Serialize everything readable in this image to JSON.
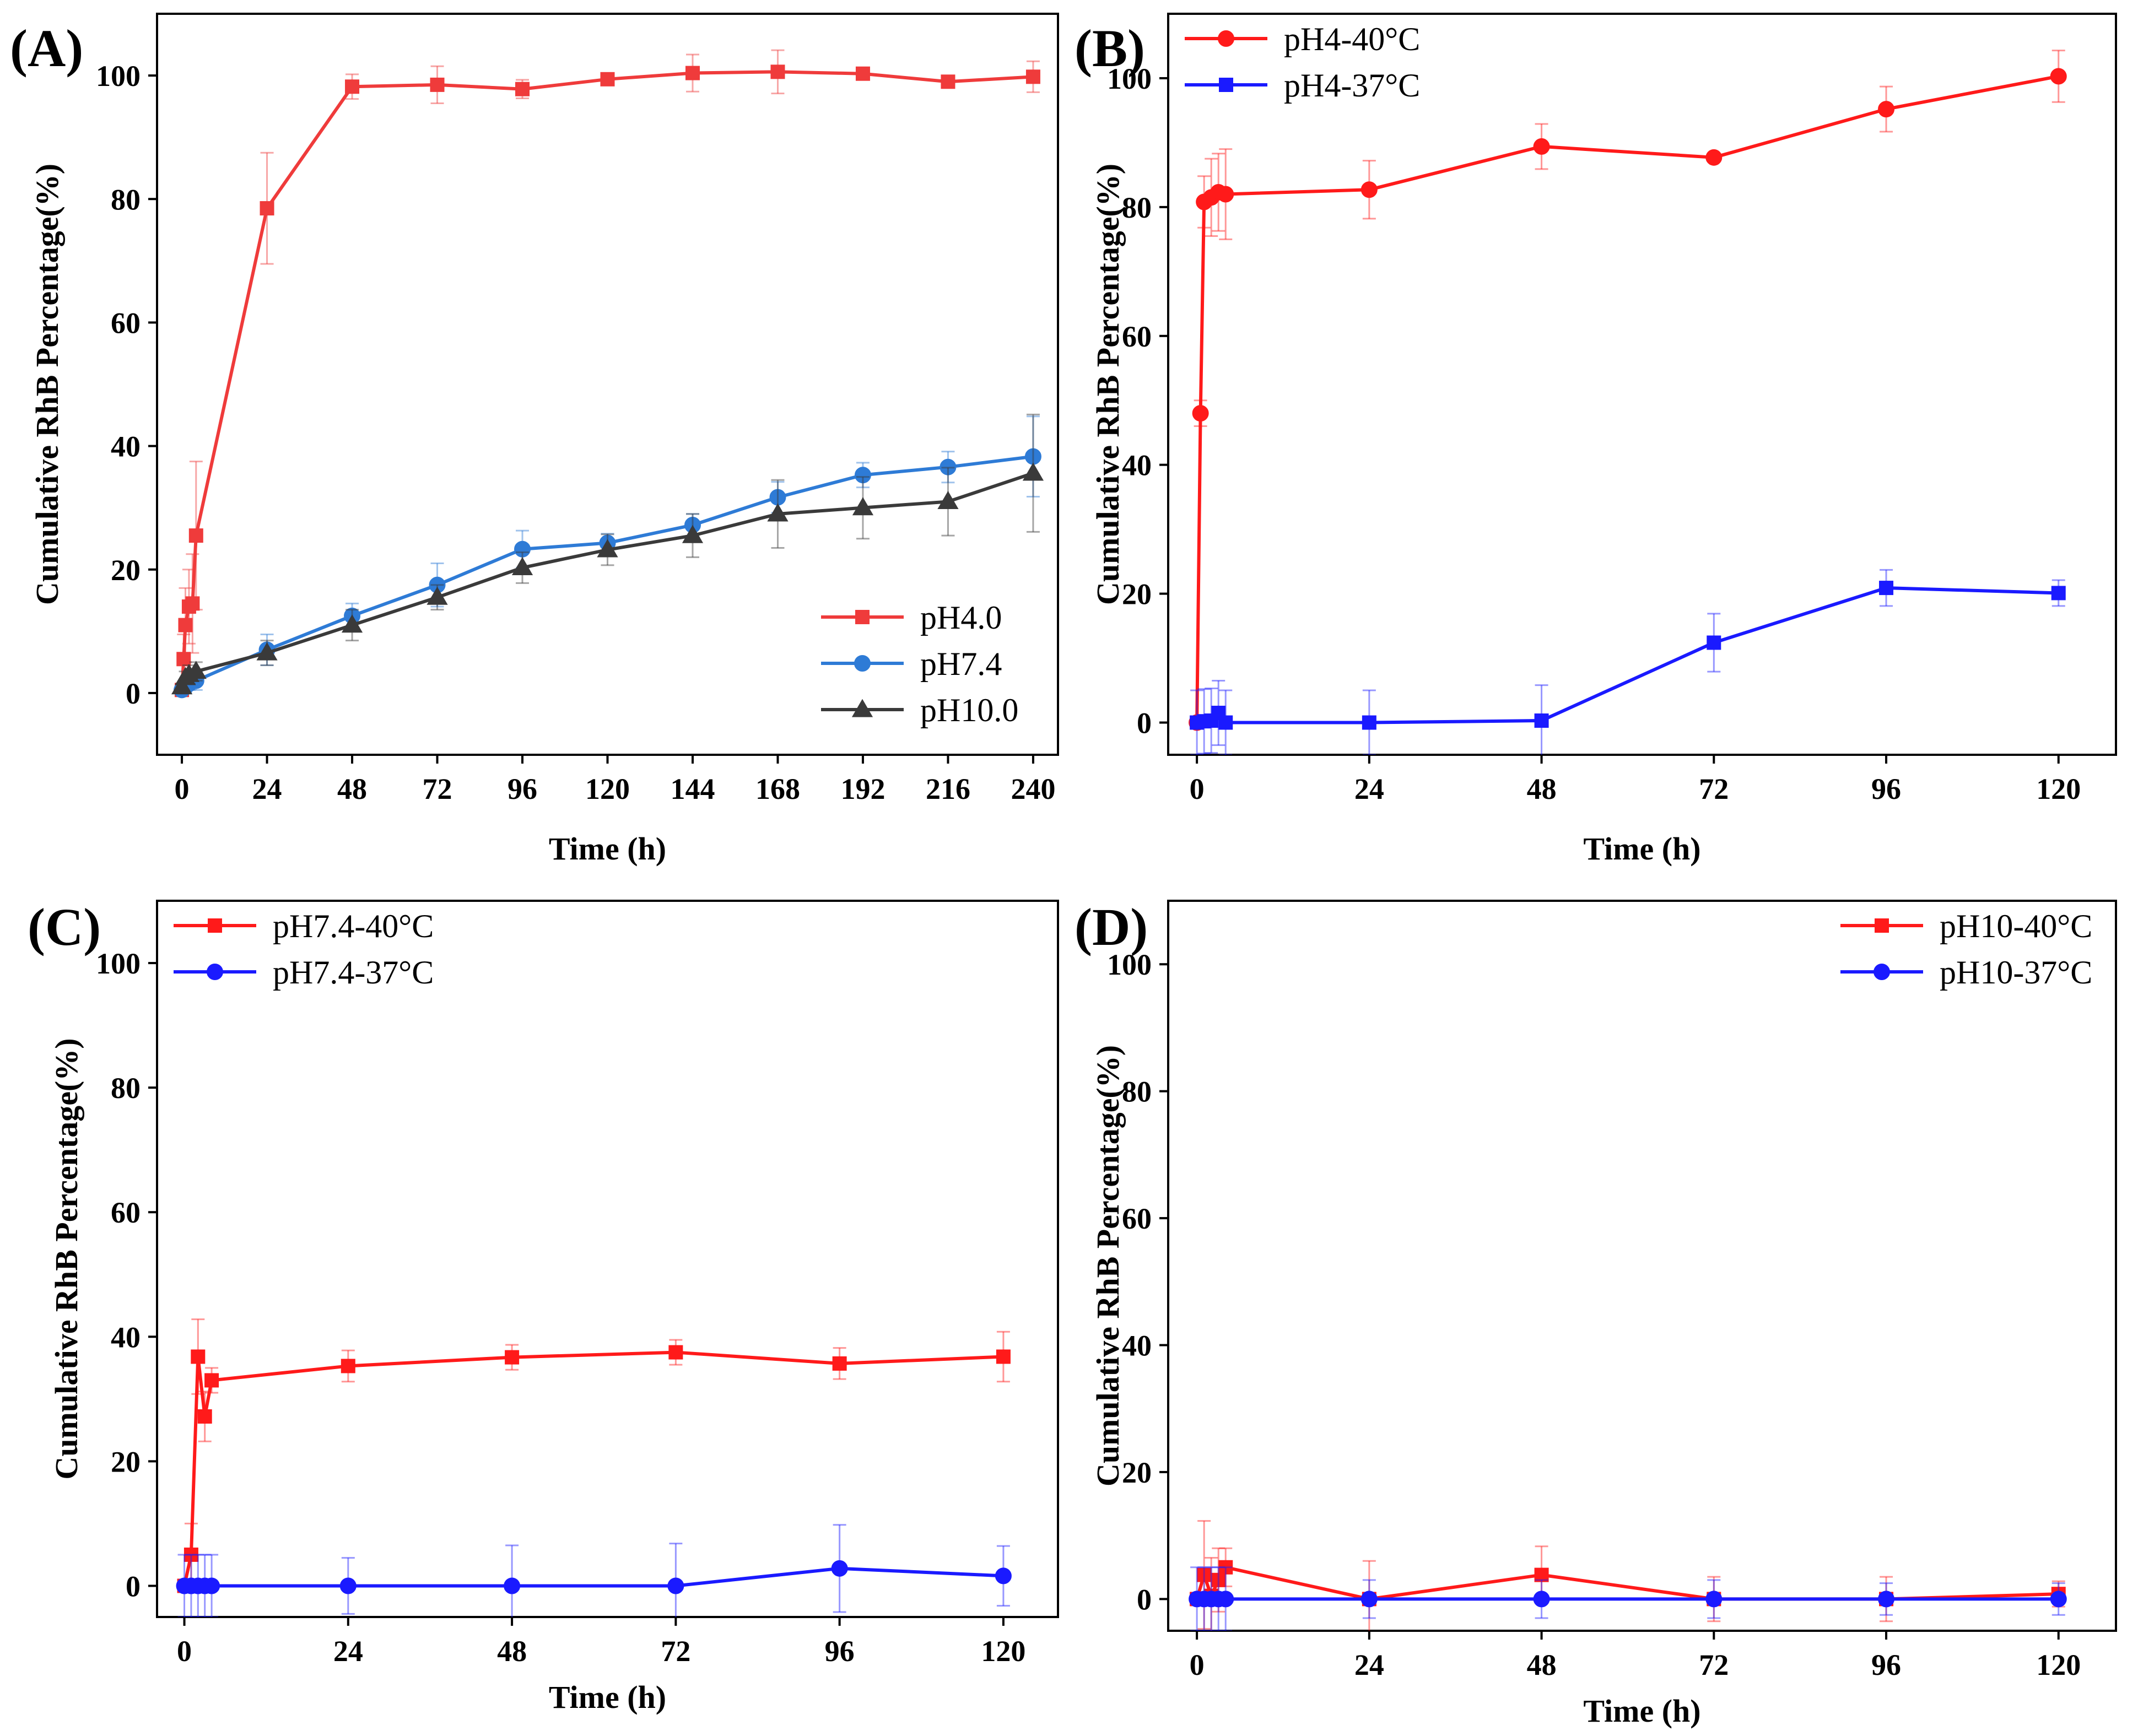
{
  "chart_data": [
    {
      "type": "line",
      "panel_label": "(A)",
      "xlabel": "Time (h)",
      "ylabel": "Cumulative RhB Percentage(%)",
      "xlim": [
        -7,
        247
      ],
      "ylim": [
        -10,
        110
      ],
      "xticks": [
        0,
        24,
        48,
        72,
        96,
        120,
        144,
        168,
        192,
        216,
        240
      ],
      "yticks": [
        0,
        20,
        40,
        60,
        80,
        100
      ],
      "xtick_labels": [
        "0",
        "24",
        "48",
        "72",
        "96",
        "120",
        "144",
        "168",
        "192",
        "216",
        "240"
      ],
      "ytick_labels": [
        "0",
        "20",
        "40",
        "60",
        "80",
        "100"
      ],
      "legend_position": "bottom-right",
      "series": [
        {
          "name": "pH4.0",
          "color": "#ef3b3b",
          "marker": "square",
          "x": [
            0,
            0.5,
            1,
            2,
            3,
            4,
            24,
            48,
            72,
            96,
            120,
            144,
            168,
            192,
            216,
            240
          ],
          "y": [
            0.5,
            5.5,
            11,
            14,
            14.5,
            25.5,
            78.5,
            98.2,
            98.5,
            97.8,
            99.4,
            100.4,
            100.6,
            100.3,
            99.0,
            99.8
          ],
          "err": [
            0.5,
            4,
            6,
            6,
            8,
            12,
            9,
            2,
            3,
            1.5,
            1,
            3,
            3.5,
            0.5,
            0.5,
            2.5
          ]
        },
        {
          "name": "pH7.4",
          "color": "#2e7bd6",
          "marker": "circle",
          "x": [
            0,
            1,
            2,
            4,
            24,
            48,
            72,
            96,
            120,
            144,
            168,
            192,
            216,
            240
          ],
          "y": [
            0.5,
            1.0,
            1.5,
            2.0,
            7.0,
            12.5,
            17.5,
            23.3,
            24.3,
            27.2,
            31.7,
            35.3,
            36.6,
            38.3
          ],
          "err": [
            0.5,
            1,
            1,
            1.5,
            2.5,
            2,
            3.5,
            3,
            1.5,
            1.8,
            2.5,
            2,
            2.5,
            6.5
          ]
        },
        {
          "name": "pH10.0",
          "color": "#3a3a3a",
          "marker": "triangle",
          "x": [
            0,
            1,
            2,
            4,
            24,
            48,
            72,
            96,
            120,
            144,
            168,
            192,
            216,
            240
          ],
          "y": [
            1.0,
            2.5,
            3.0,
            3.5,
            6.5,
            11.0,
            15.5,
            20.3,
            23.2,
            25.5,
            29.0,
            30.0,
            31.0,
            35.6
          ],
          "err": [
            0.5,
            1,
            1.5,
            1.5,
            2,
            2.5,
            2,
            2.5,
            2.5,
            3.5,
            5.5,
            5,
            5.5,
            9.5
          ]
        }
      ]
    },
    {
      "type": "line",
      "panel_label": "(B)",
      "xlabel": "Time (h)",
      "ylabel": "Cumulative RhB Percentage(%)",
      "xlim": [
        -4,
        128
      ],
      "ylim": [
        -5,
        110
      ],
      "xticks": [
        0,
        24,
        48,
        72,
        96,
        120
      ],
      "yticks": [
        0,
        20,
        40,
        60,
        80,
        100
      ],
      "xtick_labels": [
        "0",
        "24",
        "48",
        "72",
        "96",
        "120"
      ],
      "ytick_labels": [
        "0",
        "20",
        "40",
        "60",
        "80",
        "100"
      ],
      "legend_position": "top-left",
      "series": [
        {
          "name": "pH4-40°C",
          "color": "#ff1a1a",
          "marker": "circle",
          "x": [
            0,
            0.5,
            1,
            2,
            3,
            4,
            24,
            48,
            72,
            96,
            120
          ],
          "y": [
            0,
            48,
            80.8,
            81.5,
            82.3,
            82.0,
            82.7,
            89.4,
            87.7,
            95.2,
            100.3
          ],
          "err": [
            0.5,
            2,
            4,
            6,
            6,
            7,
            4.5,
            3.5,
            0.5,
            3.5,
            4
          ]
        },
        {
          "name": "pH4-37°C",
          "color": "#1a1aff",
          "marker": "square",
          "x": [
            0,
            1,
            2,
            3,
            4,
            24,
            48,
            72,
            96,
            120
          ],
          "y": [
            0,
            0.2,
            0.3,
            1.5,
            0,
            0,
            0.3,
            12.4,
            20.9,
            20.1
          ],
          "err": [
            5,
            5,
            5,
            5,
            5,
            5,
            5.5,
            4.5,
            2.8,
            2
          ]
        }
      ]
    },
    {
      "type": "line",
      "panel_label": "(C)",
      "xlabel": "Time (h)",
      "ylabel": "Cumulative RhB Percentage(%)",
      "xlim": [
        -4,
        128
      ],
      "ylim": [
        -5,
        110
      ],
      "xticks": [
        0,
        24,
        48,
        72,
        96,
        120
      ],
      "yticks": [
        0,
        20,
        40,
        60,
        80,
        100
      ],
      "xtick_labels": [
        "0",
        "24",
        "48",
        "72",
        "96",
        "120"
      ],
      "ytick_labels": [
        "0",
        "20",
        "40",
        "60",
        "80",
        "100"
      ],
      "legend_position": "top-left",
      "series": [
        {
          "name": "pH7.4-40°C",
          "color": "#ff1a1a",
          "marker": "square",
          "x": [
            0,
            1,
            2,
            3,
            4,
            24,
            48,
            72,
            96,
            120
          ],
          "y": [
            0,
            5,
            36.8,
            27.2,
            33.0,
            35.3,
            36.7,
            37.5,
            35.7,
            36.8
          ],
          "err": [
            0.5,
            5,
            6,
            4,
            2,
            2.5,
            2,
            2,
            2.5,
            4
          ]
        },
        {
          "name": "pH7.4-37°C",
          "color": "#1a1aff",
          "marker": "circle",
          "x": [
            0,
            1,
            2,
            3,
            4,
            24,
            48,
            72,
            96,
            120
          ],
          "y": [
            0,
            0,
            0,
            0,
            0,
            0,
            0,
            0,
            2.8,
            1.6
          ],
          "err": [
            5,
            5,
            5,
            5,
            5,
            4.5,
            6.5,
            6.8,
            7,
            4.8
          ]
        }
      ]
    },
    {
      "type": "line",
      "panel_label": "(D)",
      "xlabel": "Time (h)",
      "ylabel": "Cumulative RhB Percentage(%)",
      "xlim": [
        -4,
        128
      ],
      "ylim": [
        -5,
        110
      ],
      "xticks": [
        0,
        24,
        48,
        72,
        96,
        120
      ],
      "yticks": [
        0,
        20,
        40,
        60,
        80,
        100
      ],
      "xtick_labels": [
        "0",
        "24",
        "48",
        "72",
        "96",
        "120"
      ],
      "ytick_labels": [
        "0",
        "20",
        "40",
        "60",
        "80",
        "100"
      ],
      "legend_position": "top-right",
      "series": [
        {
          "name": "pH10-40°C",
          "color": "#ff1a1a",
          "marker": "square",
          "x": [
            0,
            1,
            2,
            3,
            4,
            24,
            48,
            72,
            96,
            120
          ],
          "y": [
            0,
            3.8,
            0.5,
            3.0,
            5.0,
            0,
            3.8,
            0,
            0,
            0.8
          ],
          "err": [
            0.5,
            8.5,
            6,
            5,
            3,
            6,
            4.5,
            3.5,
            3.5,
            2
          ]
        },
        {
          "name": "pH10-37°C",
          "color": "#1a1aff",
          "marker": "circle",
          "x": [
            0,
            1,
            2,
            3,
            4,
            24,
            48,
            72,
            96,
            120
          ],
          "y": [
            0,
            0,
            0,
            0,
            0,
            0,
            0,
            0,
            0,
            0
          ],
          "err": [
            5,
            5,
            5,
            5,
            5,
            3,
            3,
            3,
            2.5,
            2.5
          ]
        }
      ]
    }
  ]
}
